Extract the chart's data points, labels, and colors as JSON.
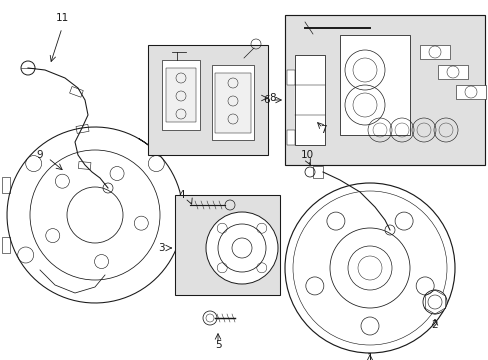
{
  "bg_color": "#ffffff",
  "lc": "#1a1a1a",
  "box_bg": "#e0e0e0",
  "fig_width": 4.89,
  "fig_height": 3.6,
  "dpi": 100
}
